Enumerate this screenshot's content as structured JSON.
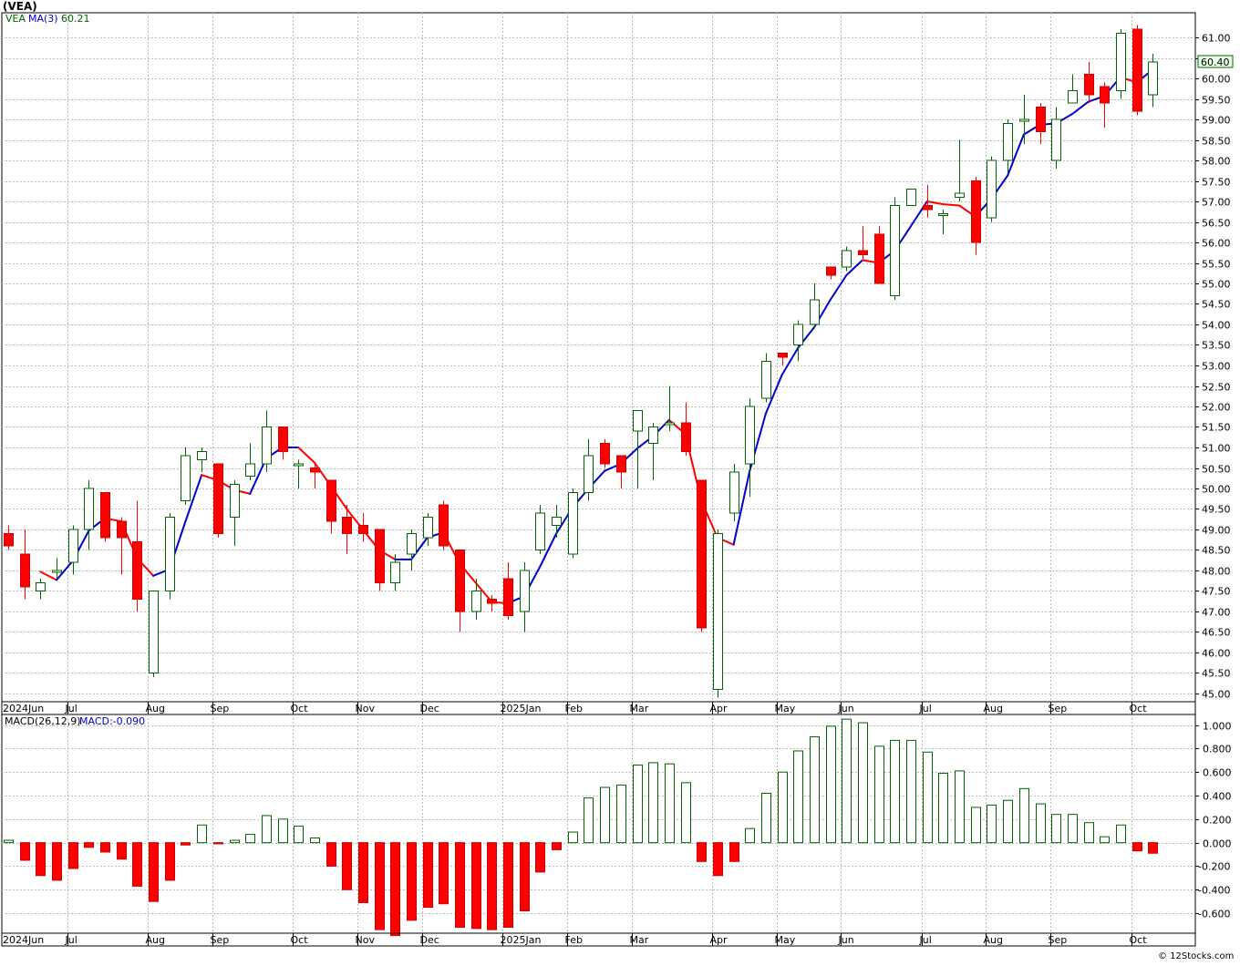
{
  "title": "(VEA)",
  "watermark": "© 12Stocks.com",
  "price_panel": {
    "legend_symbol": "VEA",
    "legend_ma": "MA(3)",
    "legend_ma_value": "60.21",
    "last_price_label": "60.40",
    "y_ticks": [
      "45.00",
      "45.50",
      "46.00",
      "46.50",
      "47.00",
      "47.50",
      "48.00",
      "48.50",
      "49.00",
      "49.50",
      "50.00",
      "50.50",
      "51.00",
      "51.50",
      "52.00",
      "52.50",
      "53.00",
      "53.50",
      "54.00",
      "54.50",
      "55.00",
      "55.50",
      "56.00",
      "56.50",
      "57.00",
      "57.50",
      "58.00",
      "58.50",
      "59.00",
      "59.50",
      "60.00",
      "60.50",
      "61.00"
    ]
  },
  "macd_panel": {
    "legend_name": "MACD(26,12,9)",
    "legend_value": "MACD:-0.090",
    "y_ticks": [
      "-0.600",
      "-0.400",
      "-0.200",
      "0.000",
      "0.200",
      "0.400",
      "0.600",
      "0.800",
      "1.000"
    ]
  },
  "x_labels": [
    "2024Jun",
    "Jul",
    "Aug",
    "Sep",
    "Oct",
    "Nov",
    "Dec",
    "2025Jan",
    "Feb",
    "Mar",
    "Apr",
    "May",
    "Jun",
    "Jul",
    "Aug",
    "Sep",
    "Oct"
  ],
  "colors": {
    "up": "#006400",
    "down": "#ff0000",
    "ma_up": "#0000cc",
    "ma_down": "#ff0000",
    "grid": "#bbbbbb",
    "legend_green": "#006400",
    "legend_blue": "#0000cc"
  },
  "chart_data": [
    {
      "type": "candlestick",
      "series_name": "VEA",
      "ylim": [
        44.8,
        61.6
      ],
      "timeframe": "weekly",
      "candles": [
        {
          "o": 48.9,
          "h": 49.1,
          "l": 48.5,
          "c": 48.6
        },
        {
          "o": 48.4,
          "h": 49.0,
          "l": 47.3,
          "c": 47.6
        },
        {
          "o": 47.5,
          "h": 47.8,
          "l": 47.3,
          "c": 47.7
        },
        {
          "o": 48.0,
          "h": 48.3,
          "l": 47.8,
          "c": 48.0
        },
        {
          "o": 48.2,
          "h": 49.1,
          "l": 47.9,
          "c": 49.0
        },
        {
          "o": 49.0,
          "h": 50.2,
          "l": 48.5,
          "c": 50.0
        },
        {
          "o": 49.9,
          "h": 49.9,
          "l": 48.7,
          "c": 48.8
        },
        {
          "o": 49.2,
          "h": 49.3,
          "l": 47.9,
          "c": 48.8
        },
        {
          "o": 48.7,
          "h": 49.7,
          "l": 47.0,
          "c": 47.3
        },
        {
          "o": 45.5,
          "h": 47.5,
          "l": 45.4,
          "c": 47.5
        },
        {
          "o": 47.5,
          "h": 49.4,
          "l": 47.3,
          "c": 49.3
        },
        {
          "o": 49.7,
          "h": 51.0,
          "l": 49.6,
          "c": 50.8
        },
        {
          "o": 50.7,
          "h": 51.0,
          "l": 50.4,
          "c": 50.9
        },
        {
          "o": 50.6,
          "h": 50.6,
          "l": 48.8,
          "c": 48.9
        },
        {
          "o": 49.3,
          "h": 50.2,
          "l": 48.6,
          "c": 50.1
        },
        {
          "o": 50.3,
          "h": 51.1,
          "l": 50.2,
          "c": 50.6
        },
        {
          "o": 50.6,
          "h": 51.9,
          "l": 50.4,
          "c": 51.5
        },
        {
          "o": 51.5,
          "h": 51.5,
          "l": 50.7,
          "c": 50.9
        },
        {
          "o": 50.6,
          "h": 50.7,
          "l": 50.0,
          "c": 50.6
        },
        {
          "o": 50.5,
          "h": 50.6,
          "l": 50.0,
          "c": 50.4
        },
        {
          "o": 50.2,
          "h": 50.2,
          "l": 48.9,
          "c": 49.2
        },
        {
          "o": 49.3,
          "h": 49.6,
          "l": 48.4,
          "c": 48.9
        },
        {
          "o": 49.1,
          "h": 49.4,
          "l": 48.7,
          "c": 48.9
        },
        {
          "o": 49.0,
          "h": 49.0,
          "l": 47.5,
          "c": 47.7
        },
        {
          "o": 47.7,
          "h": 48.4,
          "l": 47.5,
          "c": 48.2
        },
        {
          "o": 48.4,
          "h": 49.0,
          "l": 48.0,
          "c": 48.9
        },
        {
          "o": 48.8,
          "h": 49.4,
          "l": 48.6,
          "c": 49.3
        },
        {
          "o": 49.6,
          "h": 49.7,
          "l": 48.5,
          "c": 48.6
        },
        {
          "o": 48.5,
          "h": 48.5,
          "l": 46.5,
          "c": 47.0
        },
        {
          "o": 47.0,
          "h": 47.8,
          "l": 46.8,
          "c": 47.5
        },
        {
          "o": 47.3,
          "h": 47.4,
          "l": 47.0,
          "c": 47.2
        },
        {
          "o": 47.8,
          "h": 48.2,
          "l": 46.8,
          "c": 46.9
        },
        {
          "o": 47.0,
          "h": 48.2,
          "l": 46.5,
          "c": 48.0
        },
        {
          "o": 48.5,
          "h": 49.6,
          "l": 48.4,
          "c": 49.4
        },
        {
          "o": 49.1,
          "h": 49.6,
          "l": 48.8,
          "c": 49.3
        },
        {
          "o": 48.4,
          "h": 50.0,
          "l": 48.3,
          "c": 49.9
        },
        {
          "o": 49.9,
          "h": 51.2,
          "l": 49.7,
          "c": 50.8
        },
        {
          "o": 51.1,
          "h": 51.2,
          "l": 50.5,
          "c": 50.6
        },
        {
          "o": 50.8,
          "h": 50.8,
          "l": 50.0,
          "c": 50.4
        },
        {
          "o": 51.4,
          "h": 51.9,
          "l": 50.0,
          "c": 51.9
        },
        {
          "o": 51.1,
          "h": 51.6,
          "l": 50.2,
          "c": 51.5
        },
        {
          "o": 51.6,
          "h": 52.5,
          "l": 51.4,
          "c": 51.6
        },
        {
          "o": 51.6,
          "h": 52.1,
          "l": 50.8,
          "c": 50.9
        },
        {
          "o": 50.2,
          "h": 50.2,
          "l": 46.5,
          "c": 46.6
        },
        {
          "o": 45.1,
          "h": 49.0,
          "l": 44.9,
          "c": 48.9
        },
        {
          "o": 49.4,
          "h": 50.6,
          "l": 49.2,
          "c": 50.4
        },
        {
          "o": 50.6,
          "h": 52.2,
          "l": 49.8,
          "c": 52.0
        },
        {
          "o": 52.2,
          "h": 53.3,
          "l": 52.1,
          "c": 53.1
        },
        {
          "o": 53.3,
          "h": 53.3,
          "l": 53.0,
          "c": 53.2
        },
        {
          "o": 53.5,
          "h": 54.1,
          "l": 53.1,
          "c": 54.0
        },
        {
          "o": 54.0,
          "h": 55.0,
          "l": 53.9,
          "c": 54.6
        },
        {
          "o": 55.4,
          "h": 55.4,
          "l": 55.1,
          "c": 55.2
        },
        {
          "o": 55.4,
          "h": 55.9,
          "l": 55.3,
          "c": 55.8
        },
        {
          "o": 55.8,
          "h": 56.4,
          "l": 55.6,
          "c": 55.7
        },
        {
          "o": 56.2,
          "h": 56.4,
          "l": 55.0,
          "c": 55.0
        },
        {
          "o": 54.7,
          "h": 57.1,
          "l": 54.6,
          "c": 56.9
        },
        {
          "o": 56.9,
          "h": 57.3,
          "l": 56.9,
          "c": 57.3
        },
        {
          "o": 56.9,
          "h": 57.4,
          "l": 56.6,
          "c": 56.8
        },
        {
          "o": 56.7,
          "h": 56.8,
          "l": 56.2,
          "c": 56.7
        },
        {
          "o": 57.1,
          "h": 58.5,
          "l": 57.0,
          "c": 57.2
        },
        {
          "o": 57.5,
          "h": 57.6,
          "l": 55.7,
          "c": 56.0
        },
        {
          "o": 56.6,
          "h": 58.1,
          "l": 56.5,
          "c": 58.0
        },
        {
          "o": 58.0,
          "h": 59.0,
          "l": 57.7,
          "c": 58.9
        },
        {
          "o": 59.0,
          "h": 59.6,
          "l": 58.4,
          "c": 59.0
        },
        {
          "o": 59.3,
          "h": 59.4,
          "l": 58.4,
          "c": 58.7
        },
        {
          "o": 58.0,
          "h": 59.3,
          "l": 57.8,
          "c": 59.0
        },
        {
          "o": 59.4,
          "h": 60.1,
          "l": 59.4,
          "c": 59.7
        },
        {
          "o": 60.1,
          "h": 60.4,
          "l": 59.4,
          "c": 59.6
        },
        {
          "o": 59.8,
          "h": 59.9,
          "l": 58.8,
          "c": 59.4
        },
        {
          "o": 59.7,
          "h": 61.2,
          "l": 59.5,
          "c": 61.1
        },
        {
          "o": 61.2,
          "h": 61.3,
          "l": 59.1,
          "c": 59.2
        },
        {
          "o": 59.6,
          "h": 60.6,
          "l": 59.3,
          "c": 60.4
        }
      ],
      "moving_average": {
        "name": "MA(3)",
        "values": [
          null,
          null,
          47.97,
          47.77,
          48.23,
          48.97,
          49.27,
          49.2,
          48.3,
          47.87,
          48.03,
          49.2,
          50.33,
          50.2,
          49.97,
          49.87,
          50.73,
          51.0,
          51.0,
          50.63,
          50.07,
          49.5,
          49.0,
          48.5,
          48.27,
          48.27,
          48.8,
          48.93,
          48.17,
          47.7,
          47.23,
          47.2,
          47.37,
          48.1,
          48.9,
          49.53,
          50.0,
          50.43,
          50.6,
          50.97,
          51.27,
          51.67,
          51.33,
          49.7,
          48.8,
          48.63,
          50.43,
          51.83,
          52.77,
          53.43,
          53.93,
          54.6,
          55.2,
          55.57,
          55.5,
          55.8,
          56.4,
          57.0,
          56.93,
          56.9,
          56.63,
          57.07,
          57.63,
          58.63,
          58.87,
          58.9,
          59.13,
          59.43,
          59.57,
          60.03,
          59.9,
          60.21
        ]
      }
    },
    {
      "type": "bar",
      "series_name": "MACD(26,12,9)",
      "ylim": [
        -0.77,
        1.09
      ],
      "values": [
        0.02,
        -0.15,
        -0.28,
        -0.32,
        -0.22,
        -0.04,
        -0.08,
        -0.14,
        -0.37,
        -0.5,
        -0.32,
        -0.02,
        0.15,
        -0.01,
        0.02,
        0.07,
        0.23,
        0.2,
        0.14,
        0.04,
        -0.2,
        -0.4,
        -0.51,
        -0.74,
        -0.79,
        -0.66,
        -0.55,
        -0.52,
        -0.72,
        -0.73,
        -0.74,
        -0.72,
        -0.58,
        -0.25,
        -0.06,
        0.09,
        0.38,
        0.47,
        0.49,
        0.66,
        0.68,
        0.67,
        0.51,
        -0.16,
        -0.28,
        -0.16,
        0.12,
        0.42,
        0.6,
        0.78,
        0.9,
        0.99,
        1.05,
        1.02,
        0.82,
        0.87,
        0.87,
        0.77,
        0.59,
        0.61,
        0.3,
        0.32,
        0.36,
        0.46,
        0.33,
        0.24,
        0.24,
        0.17,
        0.05,
        0.15,
        -0.07,
        -0.09
      ]
    }
  ]
}
